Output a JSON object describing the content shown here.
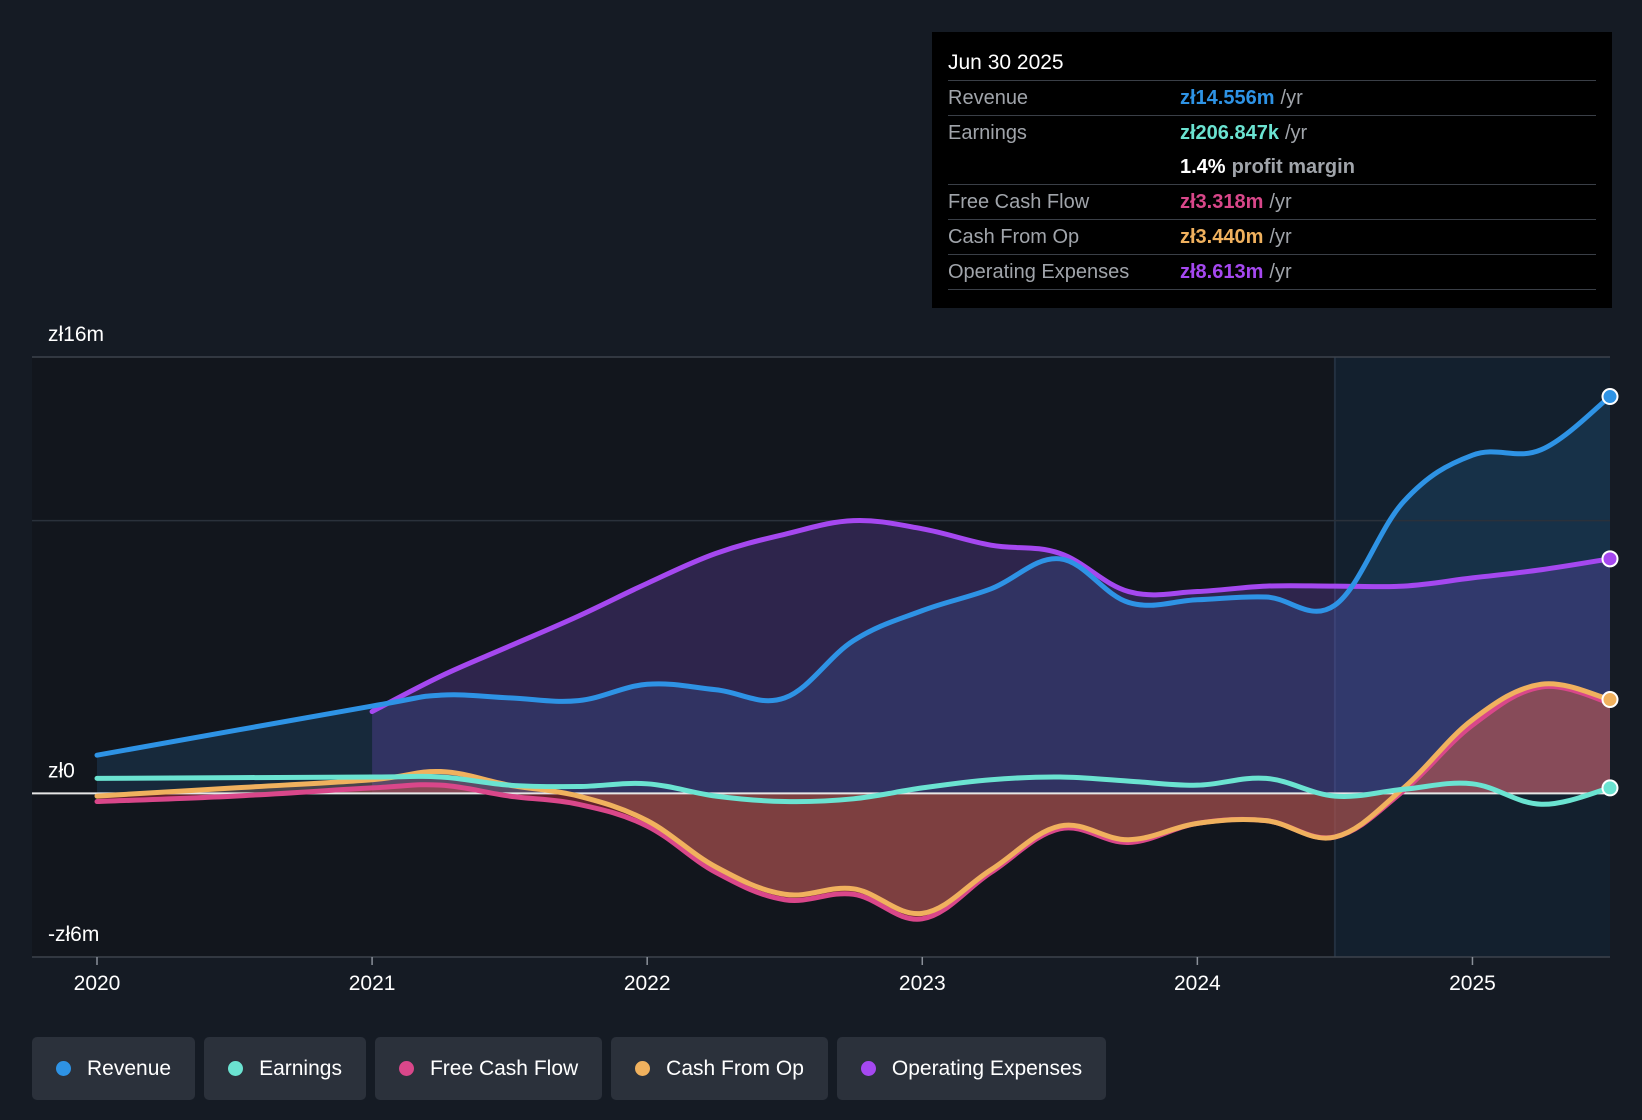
{
  "tooltip": {
    "date": "Jun 30 2025",
    "rows": [
      {
        "label": "Revenue",
        "value": "zł14.556m",
        "unit": "/yr",
        "color": "#2e93e5"
      },
      {
        "label": "Earnings",
        "value": "zł206.847k",
        "unit": "/yr",
        "color": "#6be3d1"
      },
      {
        "label": "",
        "value": "1.4%",
        "unit": "profit margin",
        "color": "#ffffff"
      },
      {
        "label": "Free Cash Flow",
        "value": "zł3.318m",
        "unit": "/yr",
        "color": "#d9478a"
      },
      {
        "label": "Cash From Op",
        "value": "zł3.440m",
        "unit": "/yr",
        "color": "#f0b15e"
      },
      {
        "label": "Operating Expenses",
        "value": "zł8.613m",
        "unit": "/yr",
        "color": "#a548f0"
      }
    ]
  },
  "legend": [
    {
      "label": "Revenue",
      "color": "#2e93e5"
    },
    {
      "label": "Earnings",
      "color": "#6be3d1"
    },
    {
      "label": "Free Cash Flow",
      "color": "#d9478a"
    },
    {
      "label": "Cash From Op",
      "color": "#f0b15e"
    },
    {
      "label": "Operating Expenses",
      "color": "#a548f0"
    }
  ],
  "chart_data": {
    "type": "line",
    "title": "",
    "y_tick_labels": [
      "zł16m",
      "zł0",
      "-zł6m"
    ],
    "y_ticks": [
      16,
      0,
      -6
    ],
    "ylim": [
      -6,
      16
    ],
    "xlim": [
      2020,
      2025.5
    ],
    "x_ticks": [
      2020,
      2021,
      2022,
      2023,
      2024,
      2025
    ],
    "x_tick_labels": [
      "2020",
      "2021",
      "2022",
      "2023",
      "2024",
      "2025"
    ],
    "highlight_start": 2024.5,
    "series": [
      {
        "name": "Revenue",
        "color": "#2e93e5",
        "x": [
          2020,
          2021,
          2021.25,
          2021.5,
          2021.75,
          2022,
          2022.25,
          2022.5,
          2022.75,
          2023,
          2023.25,
          2023.5,
          2023.75,
          2024,
          2024.25,
          2024.5,
          2024.75,
          2025,
          2025.25,
          2025.5
        ],
        "y": [
          1.4,
          3.2,
          3.6,
          3.5,
          3.4,
          4.0,
          3.8,
          3.5,
          5.6,
          6.7,
          7.5,
          8.6,
          7.0,
          7.1,
          7.2,
          6.9,
          10.7,
          12.4,
          12.6,
          14.55
        ]
      },
      {
        "name": "Earnings",
        "color": "#6be3d1",
        "x": [
          2020,
          2021,
          2021.25,
          2021.5,
          2021.75,
          2022,
          2022.25,
          2022.5,
          2022.75,
          2023,
          2023.25,
          2023.5,
          2023.75,
          2024,
          2024.25,
          2024.5,
          2024.75,
          2025,
          2025.25,
          2025.5
        ],
        "y": [
          0.55,
          0.6,
          0.6,
          0.3,
          0.25,
          0.35,
          -0.1,
          -0.3,
          -0.2,
          0.2,
          0.5,
          0.6,
          0.45,
          0.3,
          0.55,
          -0.1,
          0.15,
          0.35,
          -0.4,
          0.2
        ]
      },
      {
        "name": "Free Cash Flow",
        "color": "#d9478a",
        "x": [
          2020,
          2020.5,
          2021,
          2021.25,
          2021.5,
          2021.75,
          2022,
          2022.25,
          2022.5,
          2022.75,
          2023,
          2023.25,
          2023.5,
          2023.75,
          2024,
          2024.25,
          2024.5,
          2024.75,
          2025,
          2025.25,
          2025.5
        ],
        "y": [
          -0.3,
          -0.1,
          0.2,
          0.3,
          -0.1,
          -0.4,
          -1.2,
          -2.9,
          -3.9,
          -3.7,
          -4.6,
          -2.9,
          -1.3,
          -1.8,
          -1.1,
          -1.0,
          -1.6,
          0.1,
          2.5,
          3.9,
          3.318
        ]
      },
      {
        "name": "Cash From Op",
        "color": "#f0b15e",
        "x": [
          2020,
          2020.5,
          2021,
          2021.25,
          2021.5,
          2021.75,
          2022,
          2022.25,
          2022.5,
          2022.75,
          2023,
          2023.25,
          2023.5,
          2023.75,
          2024,
          2024.25,
          2024.5,
          2024.75,
          2025,
          2025.25,
          2025.5
        ],
        "y": [
          -0.1,
          0.2,
          0.5,
          0.8,
          0.3,
          -0.1,
          -1.0,
          -2.7,
          -3.7,
          -3.5,
          -4.4,
          -2.8,
          -1.2,
          -1.7,
          -1.1,
          -1.0,
          -1.6,
          0.2,
          2.7,
          4.0,
          3.44
        ]
      },
      {
        "name": "Operating Expenses",
        "color": "#a548f0",
        "x": [
          2021,
          2021.25,
          2021.5,
          2021.75,
          2022,
          2022.25,
          2022.5,
          2022.75,
          2023,
          2023.25,
          2023.5,
          2023.75,
          2024,
          2024.25,
          2024.5,
          2024.75,
          2025,
          2025.25,
          2025.5
        ],
        "y": [
          3.0,
          4.3,
          5.4,
          6.5,
          7.7,
          8.8,
          9.5,
          10.0,
          9.7,
          9.1,
          8.8,
          7.4,
          7.4,
          7.6,
          7.6,
          7.6,
          7.9,
          8.2,
          8.6
        ]
      }
    ]
  }
}
